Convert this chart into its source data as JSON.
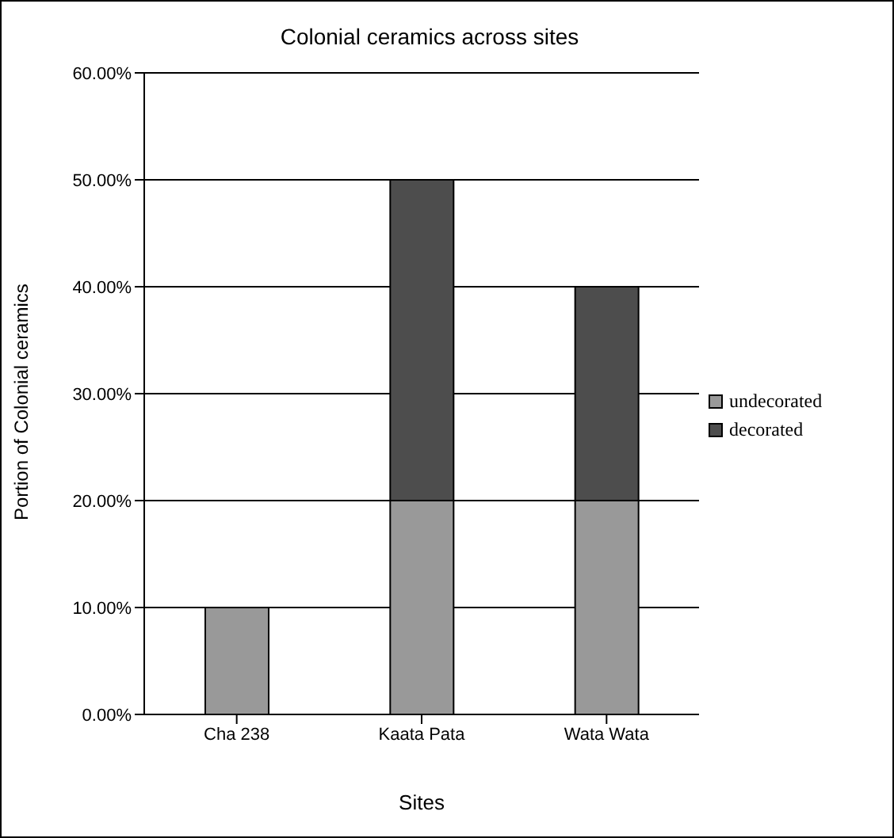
{
  "chart_data": {
    "type": "bar",
    "title": "Colonial ceramics across sites",
    "xlabel": "Sites",
    "ylabel": "Portion of Colonial ceramics",
    "categories": [
      "Cha 238",
      "Kaata Pata",
      "Wata Wata"
    ],
    "stacked": true,
    "series": [
      {
        "name": "undecorated",
        "color": "#999999",
        "values": [
          10,
          20,
          20
        ]
      },
      {
        "name": "decorated",
        "color": "#4d4d4d",
        "values": [
          0,
          30,
          20
        ]
      }
    ],
    "ylim": [
      0,
      60
    ],
    "yticks": [
      {
        "value": 0,
        "label": "0.00%"
      },
      {
        "value": 10,
        "label": "10.00%"
      },
      {
        "value": 20,
        "label": "20.00%"
      },
      {
        "value": 30,
        "label": "30.00%"
      },
      {
        "value": 40,
        "label": "40.00%"
      },
      {
        "value": 50,
        "label": "50.00%"
      },
      {
        "value": 60,
        "label": "60.00%"
      }
    ],
    "grid": "y",
    "legend": "right"
  }
}
